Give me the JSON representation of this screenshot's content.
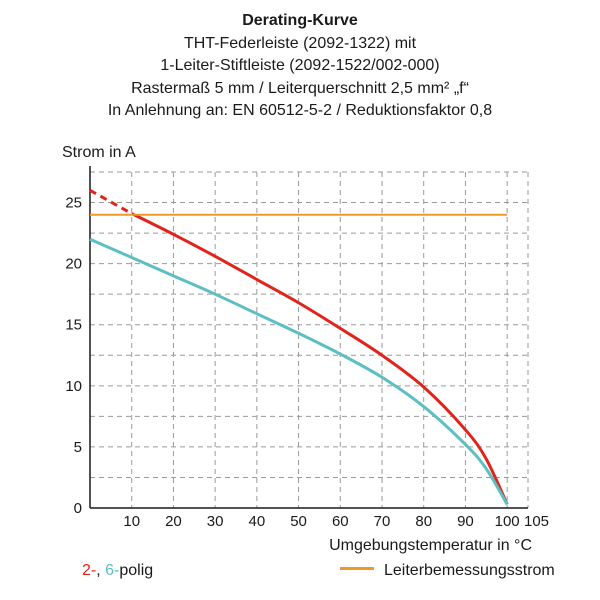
{
  "title_lines": [
    "Derating-Kurve",
    "THT-Federleiste (2092-1322) mit",
    "1-Leiter-Stiftleiste (2092-1522/002-000)",
    "Rastermaß 5 mm / Leiterquerschnitt 2,5 mm² „f“",
    "In Anlehnung an: EN 60512-5-2 / Reduktionsfaktor 0,8"
  ],
  "legend": {
    "red_label": "2-",
    "sep": ", ",
    "cyan_label": "6-",
    "suffix": "polig",
    "orange_label": "Leiterbemessungsstrom"
  },
  "chart_data": {
    "type": "line",
    "ylabel": "Strom in A",
    "xlabel": "Umgebungstemperatur in °C",
    "xlim": [
      0,
      105
    ],
    "ylim": [
      0,
      27.5
    ],
    "xticks": [
      10,
      20,
      30,
      40,
      50,
      60,
      70,
      80,
      90,
      100,
      105
    ],
    "yticks": [
      0,
      5,
      10,
      15,
      20,
      25
    ],
    "grid": true,
    "colors": {
      "red": "#e2231a",
      "cyan": "#5bbfc3",
      "orange": "#f0992b"
    },
    "series": [
      {
        "name": "2-polig",
        "color": "#e2231a",
        "dashed_x": [
          0,
          10
        ],
        "x": [
          0,
          10,
          20,
          30,
          40,
          50,
          60,
          70,
          80,
          90,
          95,
          100
        ],
        "y": [
          26.0,
          24.1,
          22.4,
          20.6,
          18.7,
          16.8,
          14.7,
          12.5,
          9.9,
          6.4,
          4.0,
          0.3
        ]
      },
      {
        "name": "6-polig",
        "color": "#5bbfc3",
        "x": [
          0,
          10,
          20,
          30,
          40,
          50,
          60,
          70,
          80,
          90,
          95,
          100
        ],
        "y": [
          22.0,
          20.5,
          19.0,
          17.5,
          15.9,
          14.3,
          12.6,
          10.7,
          8.3,
          5.2,
          3.2,
          0.3
        ]
      },
      {
        "name": "Leiterbemessungsstrom",
        "color": "#f0992b",
        "x": [
          0,
          100
        ],
        "y": [
          24,
          24
        ]
      }
    ]
  }
}
